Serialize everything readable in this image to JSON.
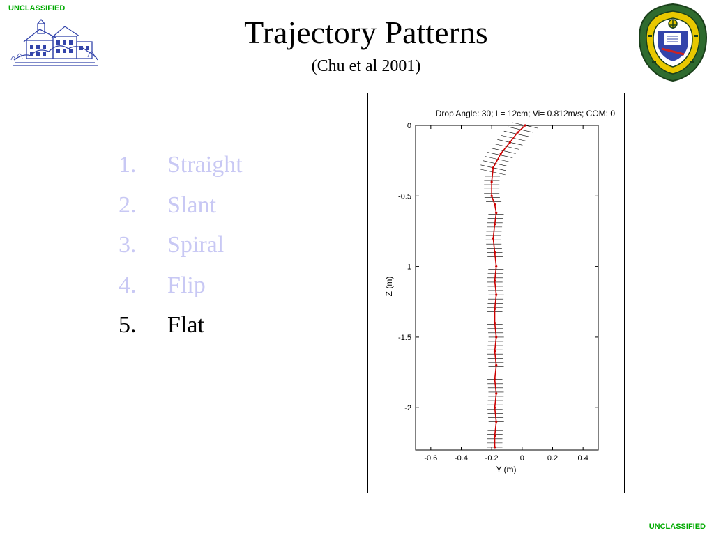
{
  "classification": {
    "top": "UNCLASSIFIED",
    "bottom": "UNCLASSIFIED"
  },
  "slide": {
    "title": "Trajectory Patterns",
    "subtitle": "(Chu et al 2001)",
    "items": [
      {
        "number": "1.",
        "label": "Straight",
        "state": "dim"
      },
      {
        "number": "2.",
        "label": "Slant",
        "state": "dim"
      },
      {
        "number": "3.",
        "label": "Spiral",
        "state": "dim"
      },
      {
        "number": "4.",
        "label": "Flip",
        "state": "dim"
      },
      {
        "number": "5.",
        "label": "Flat",
        "state": "active"
      }
    ]
  },
  "colors": {
    "classification": "#00aa00",
    "dim_text": "#c8c8f4",
    "trajectory": "#cc0000",
    "logo_blue": "#3344aa",
    "seal_green": "#2f6b2f",
    "seal_gold": "#e8c800"
  },
  "icons": {
    "left_logo": "campus-building-sketch-icon",
    "right_logo": "naval-postgraduate-school-seal-icon"
  },
  "chart_data": {
    "type": "line",
    "title": "Drop Angle: 30; L= 12cm; Vi= 0.812m/s; COM: 0",
    "xlabel": "Y (m)",
    "ylabel": "Z (m)",
    "xlim": [
      -0.7,
      0.5
    ],
    "ylim": [
      -2.3,
      0
    ],
    "xticks": [
      -0.6,
      -0.4,
      -0.2,
      0,
      0.2,
      0.4
    ],
    "xtick_labels": [
      "-0.6",
      "-0.4",
      "-0.2",
      "0",
      "0.2",
      "0.4"
    ],
    "yticks": [
      0,
      -0.5,
      -1,
      -1.5,
      -2
    ],
    "ytick_labels": [
      "0",
      "-0.5",
      "-1",
      "-1.5",
      "-2"
    ],
    "grid": false,
    "series": [
      {
        "x": [
          0.02,
          -0.03,
          -0.08,
          -0.14,
          -0.19,
          -0.2,
          -0.2,
          -0.18,
          -0.17,
          -0.18,
          -0.19,
          -0.18,
          -0.17,
          -0.18,
          -0.17,
          -0.18,
          -0.18,
          -0.17,
          -0.18,
          -0.17,
          -0.18,
          -0.17,
          -0.18,
          -0.17,
          -0.18,
          -0.18
        ],
        "y": [
          0,
          -0.05,
          -0.12,
          -0.2,
          -0.3,
          -0.4,
          -0.5,
          -0.56,
          -0.62,
          -0.7,
          -0.8,
          -0.9,
          -1.0,
          -1.1,
          -1.2,
          -1.3,
          -1.4,
          -1.5,
          -1.6,
          -1.7,
          -1.8,
          -1.9,
          -2.0,
          -2.1,
          -2.2,
          -2.28
        ]
      }
    ]
  }
}
